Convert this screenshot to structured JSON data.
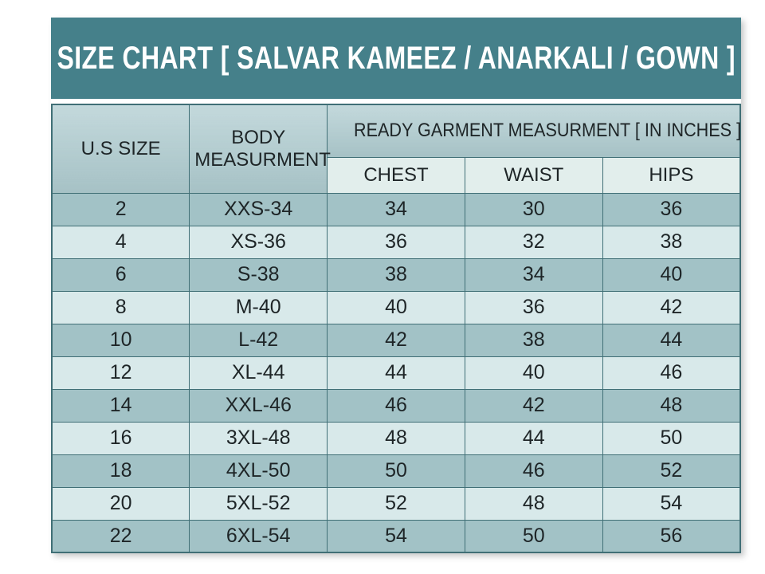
{
  "theme": {
    "page_bg": "#FFFFFF",
    "title_bg": "#45808A",
    "title_text": "#FFFFFF",
    "header_bg": "#AFCCD0",
    "subheader_bg": "#E2EEEC",
    "row_dark": "#A2C2C6",
    "row_light": "#D8E9EA",
    "grid_border": "#406F76",
    "cell_text": "#1E2527"
  },
  "chart_data": {
    "type": "table",
    "title": "SIZE CHART [ SALVAR KAMEEZ / ANARKALI / GOWN ]",
    "header": {
      "us_size": "U.S SIZE",
      "body_measurment": "BODY MEASURMENT",
      "group": "READY GARMENT MEASURMENT [ IN INCHES ]",
      "sub": [
        "CHEST",
        "WAIST",
        "HIPS"
      ]
    },
    "rows": [
      [
        "2",
        "XXS-34",
        "34",
        "30",
        "36"
      ],
      [
        "4",
        "XS-36",
        "36",
        "32",
        "38"
      ],
      [
        "6",
        "S-38",
        "38",
        "34",
        "40"
      ],
      [
        "8",
        "M-40",
        "40",
        "36",
        "42"
      ],
      [
        "10",
        "L-42",
        "42",
        "38",
        "44"
      ],
      [
        "12",
        "XL-44",
        "44",
        "40",
        "46"
      ],
      [
        "14",
        "XXL-46",
        "46",
        "42",
        "48"
      ],
      [
        "16",
        "3XL-48",
        "48",
        "44",
        "50"
      ],
      [
        "18",
        "4XL-50",
        "50",
        "46",
        "52"
      ],
      [
        "20",
        "5XL-52",
        "52",
        "48",
        "54"
      ],
      [
        "22",
        "6XL-54",
        "54",
        "50",
        "56"
      ]
    ]
  }
}
